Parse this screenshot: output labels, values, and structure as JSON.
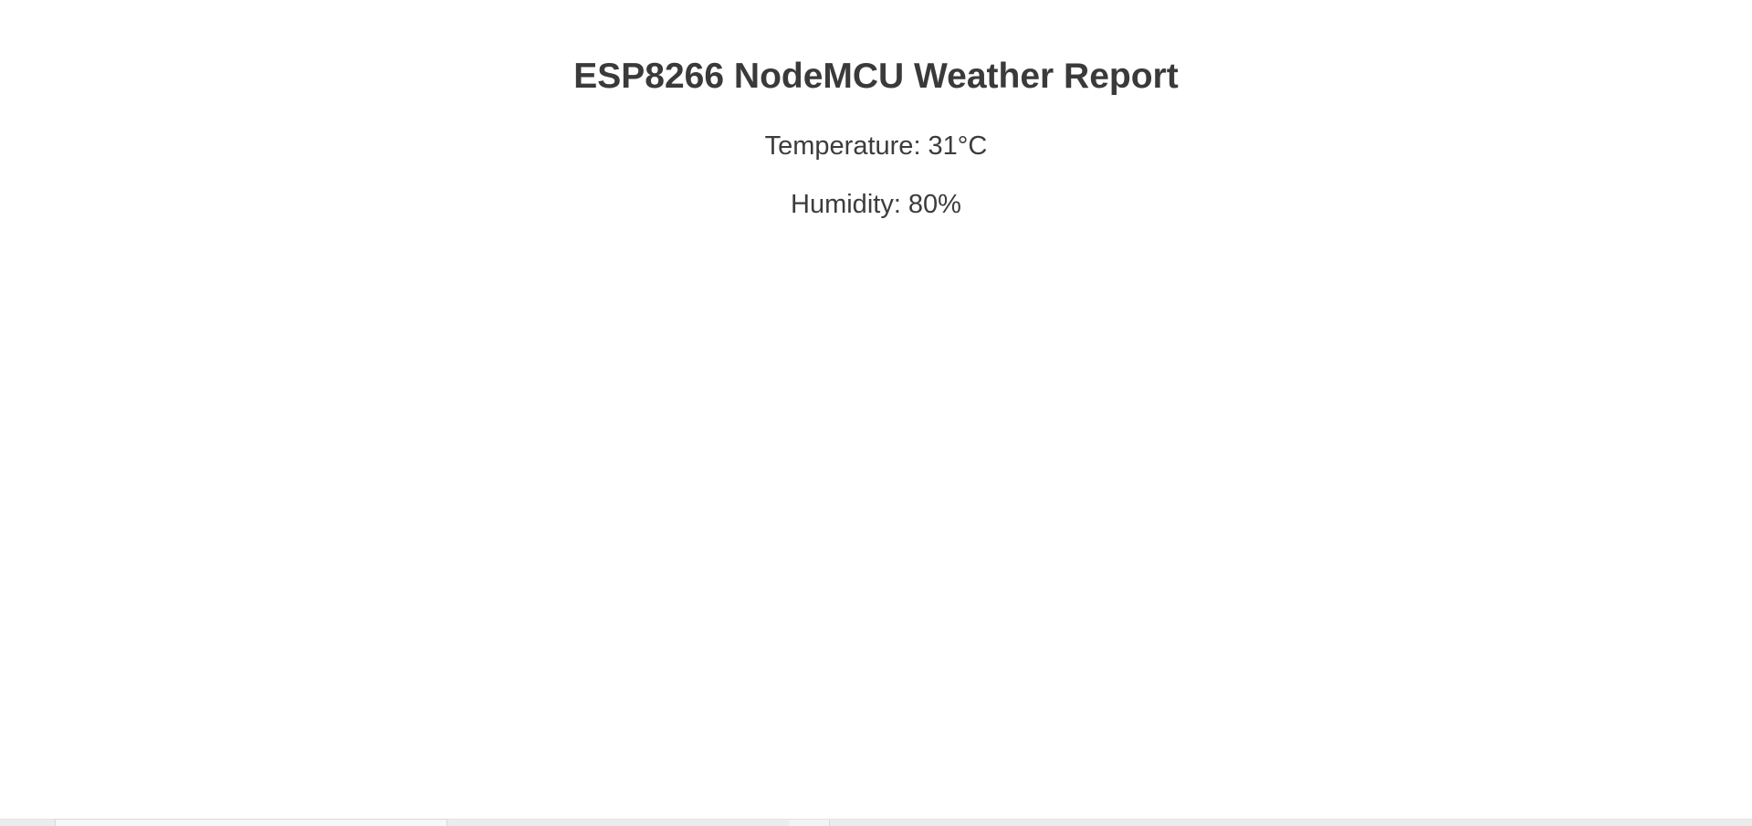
{
  "page": {
    "title": "ESP8266 NodeMCU Weather Report",
    "temperature": "Temperature: 31°C",
    "humidity": "Humidity: 80%"
  },
  "colors": {
    "background": "#ffffff",
    "text": "#3c3c3c"
  }
}
